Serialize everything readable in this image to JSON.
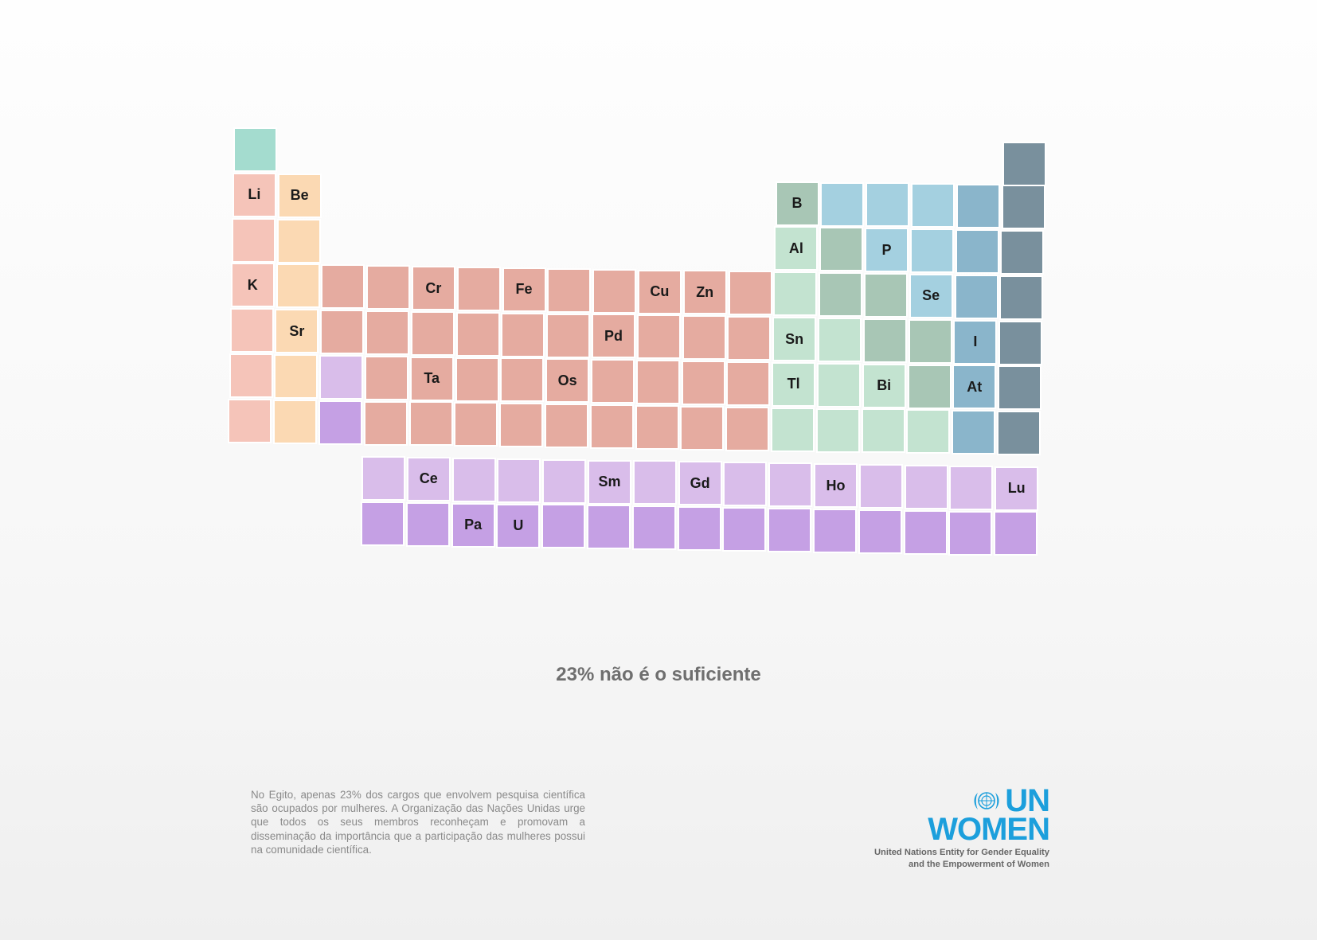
{
  "periodic_table": {
    "colors": {
      "hydrogen": "#a4dccf",
      "alkali": "#f5c4b9",
      "alkaline": "#fbd9b3",
      "transition": "#e5aba0",
      "post_transition": "#c3e3d0",
      "metalloid": "#a8c6b5",
      "nonmetal": "#a4d0e0",
      "halogen": "#8ab5cb",
      "noble": "#79909d",
      "lanthanide": "#d9bdea",
      "actinide": "#c5a0e4"
    },
    "rows": [
      [
        "",
        "",
        "",
        "",
        "",
        "",
        "",
        "",
        "",
        "",
        "",
        "",
        "",
        "",
        "",
        "",
        "",
        ""
      ],
      [
        "Li",
        "Be",
        "",
        "",
        "",
        "",
        "",
        "",
        "",
        "",
        "",
        "",
        "B",
        "",
        "",
        "",
        "",
        ""
      ],
      [
        "",
        "",
        "",
        "",
        "",
        "",
        "",
        "",
        "",
        "",
        "",
        "",
        "Al",
        "",
        "P",
        "",
        "",
        ""
      ],
      [
        "K",
        "",
        "",
        "",
        "Cr",
        "",
        "Fe",
        "",
        "",
        "Cu",
        "Zn",
        "",
        "",
        "",
        "",
        "Se",
        "",
        ""
      ],
      [
        "",
        "Sr",
        "",
        "",
        "",
        "",
        "",
        "",
        "Pd",
        "",
        "",
        "",
        "Sn",
        "",
        "",
        "",
        "I",
        ""
      ],
      [
        "",
        "",
        "",
        "",
        "Ta",
        "",
        "",
        "Os",
        "",
        "",
        "",
        "",
        "Tl",
        "",
        "Bi",
        "",
        "At",
        ""
      ],
      [
        "",
        "",
        "",
        "",
        "",
        "",
        "",
        "",
        "",
        "",
        "",
        "",
        "",
        "",
        "",
        "",
        "",
        ""
      ]
    ],
    "lanthanides": [
      "",
      "Ce",
      "",
      "",
      "",
      "Sm",
      "",
      "Gd",
      "",
      "",
      "Ho",
      "",
      "",
      "",
      "Lu"
    ],
    "actinides": [
      "",
      "",
      "Pa",
      "U",
      "",
      "",
      "",
      "",
      "",
      "",
      "",
      "",
      "",
      "",
      ""
    ]
  },
  "headline": "23% não é o suficiente",
  "body_text": "No Egito, apenas 23% dos cargos que envolvem pesquisa científica são ocupados por mulheres. A Organização das Nações Unidas urge que todos os seus membros reconheçam e promovam a disseminação da importância que a participação das mulheres possui na comunidade científica.",
  "logo": {
    "line1": "UN",
    "line2": "WOMEN",
    "tagline1": "United Nations Entity for Gender Equality",
    "tagline2": "and the Empowerment of Women",
    "color": "#1c9fdc",
    "emblem": "un-emblem-icon"
  }
}
